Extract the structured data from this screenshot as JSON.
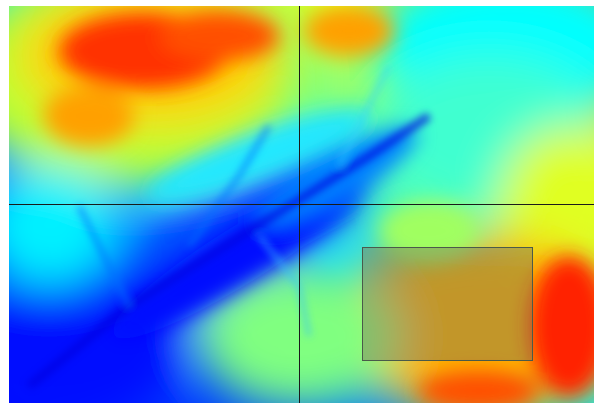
{
  "map": {
    "type": "elevation-raster",
    "colormap": "jet",
    "colormap_stops": [
      "#0000ff",
      "#0090ff",
      "#00ffff",
      "#80ff80",
      "#ffff00",
      "#ff9000",
      "#ff0000"
    ]
  },
  "crosshair": {
    "color": "#1a1a1a"
  },
  "selection": {
    "border_color": "#4a5a4a",
    "fill": "rgba(120,120,90,0.45)"
  }
}
